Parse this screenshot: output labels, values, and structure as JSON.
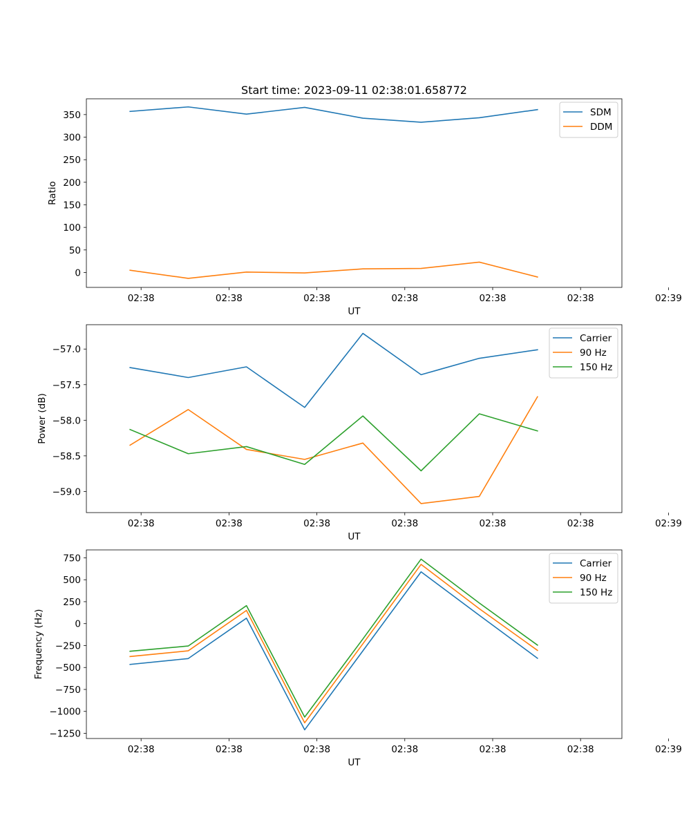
{
  "figure": {
    "title": "Start time: 2023-09-11 02:38:01.658772"
  },
  "chart_data": [
    {
      "type": "line",
      "title": "Start time: 2023-09-11 02:38:01.658772",
      "xlabel": "UT",
      "ylabel": "Ratio",
      "x_tick_labels": [
        "02:38",
        "02:38",
        "02:38",
        "02:38",
        "02:38",
        "02:38",
        "02:39"
      ],
      "x": [
        0,
        1,
        2,
        3,
        4,
        5,
        6,
        7
      ],
      "xlim": [
        -0.75,
        8.45
      ],
      "ylim": [
        -33,
        385
      ],
      "yticks": [
        0,
        50,
        100,
        150,
        200,
        250,
        300,
        350
      ],
      "ytick_labels": [
        "0",
        "50",
        "100",
        "150",
        "200",
        "250",
        "300",
        "350"
      ],
      "legend": "top-right",
      "series": [
        {
          "name": "SDM",
          "color": "#1f77b4",
          "values": [
            357,
            367,
            351,
            366,
            342,
            333,
            343,
            361
          ]
        },
        {
          "name": "DDM",
          "color": "#ff7f0e",
          "values": [
            5,
            -13,
            1,
            -1,
            8,
            9,
            23,
            -10
          ]
        }
      ]
    },
    {
      "type": "line",
      "xlabel": "UT",
      "ylabel": "Power (dB)",
      "x_tick_labels": [
        "02:38",
        "02:38",
        "02:38",
        "02:38",
        "02:38",
        "02:38",
        "02:39"
      ],
      "x": [
        0,
        1,
        2,
        3,
        4,
        5,
        6,
        7
      ],
      "xlim": [
        -0.75,
        8.45
      ],
      "ylim": [
        -59.297,
        -56.658
      ],
      "yticks": [
        -59.0,
        -58.5,
        -58.0,
        -57.5,
        -57.0
      ],
      "ytick_labels": [
        "−59.0",
        "−58.5",
        "−58.0",
        "−57.5",
        "−57.0"
      ],
      "legend": "top-right",
      "series": [
        {
          "name": "Carrier",
          "color": "#1f77b4",
          "values": [
            -57.26,
            -57.4,
            -57.25,
            -57.82,
            -56.78,
            -57.36,
            -57.13,
            -57.01
          ]
        },
        {
          "name": "90 Hz",
          "color": "#ff7f0e",
          "values": [
            -58.35,
            -57.85,
            -58.41,
            -58.55,
            -58.32,
            -59.17,
            -59.07,
            -57.67
          ]
        },
        {
          "name": "150 Hz",
          "color": "#2ca02c",
          "values": [
            -58.13,
            -58.47,
            -58.37,
            -58.62,
            -57.94,
            -58.71,
            -57.91,
            -58.15
          ]
        }
      ]
    },
    {
      "type": "line",
      "xlabel": "UT",
      "ylabel": "Frequency (Hz)",
      "x_tick_labels": [
        "02:38",
        "02:38",
        "02:38",
        "02:38",
        "02:38",
        "02:38",
        "02:39"
      ],
      "x": [
        0,
        1,
        2,
        3,
        4,
        5,
        6,
        7
      ],
      "xlim": [
        -0.75,
        8.45
      ],
      "ylim": [
        -1309,
        840
      ],
      "yticks": [
        -1250,
        -1000,
        -750,
        -500,
        -250,
        0,
        250,
        500,
        750
      ],
      "ytick_labels": [
        "−1250",
        "−1000",
        "−750",
        "−500",
        "−250",
        "0",
        "250",
        "500",
        "750"
      ],
      "legend": "top-right",
      "series": [
        {
          "name": "Carrier",
          "color": "#1f77b4",
          "values": [
            -465,
            -398,
            62,
            -1210,
            -310,
            590,
            95,
            -395
          ]
        },
        {
          "name": "90 Hz",
          "color": "#ff7f0e",
          "values": [
            -375,
            -310,
            150,
            -1130,
            -230,
            675,
            170,
            -305
          ]
        },
        {
          "name": "150 Hz",
          "color": "#2ca02c",
          "values": [
            -315,
            -255,
            205,
            -1065,
            -175,
            735,
            235,
            -245
          ]
        }
      ]
    }
  ]
}
